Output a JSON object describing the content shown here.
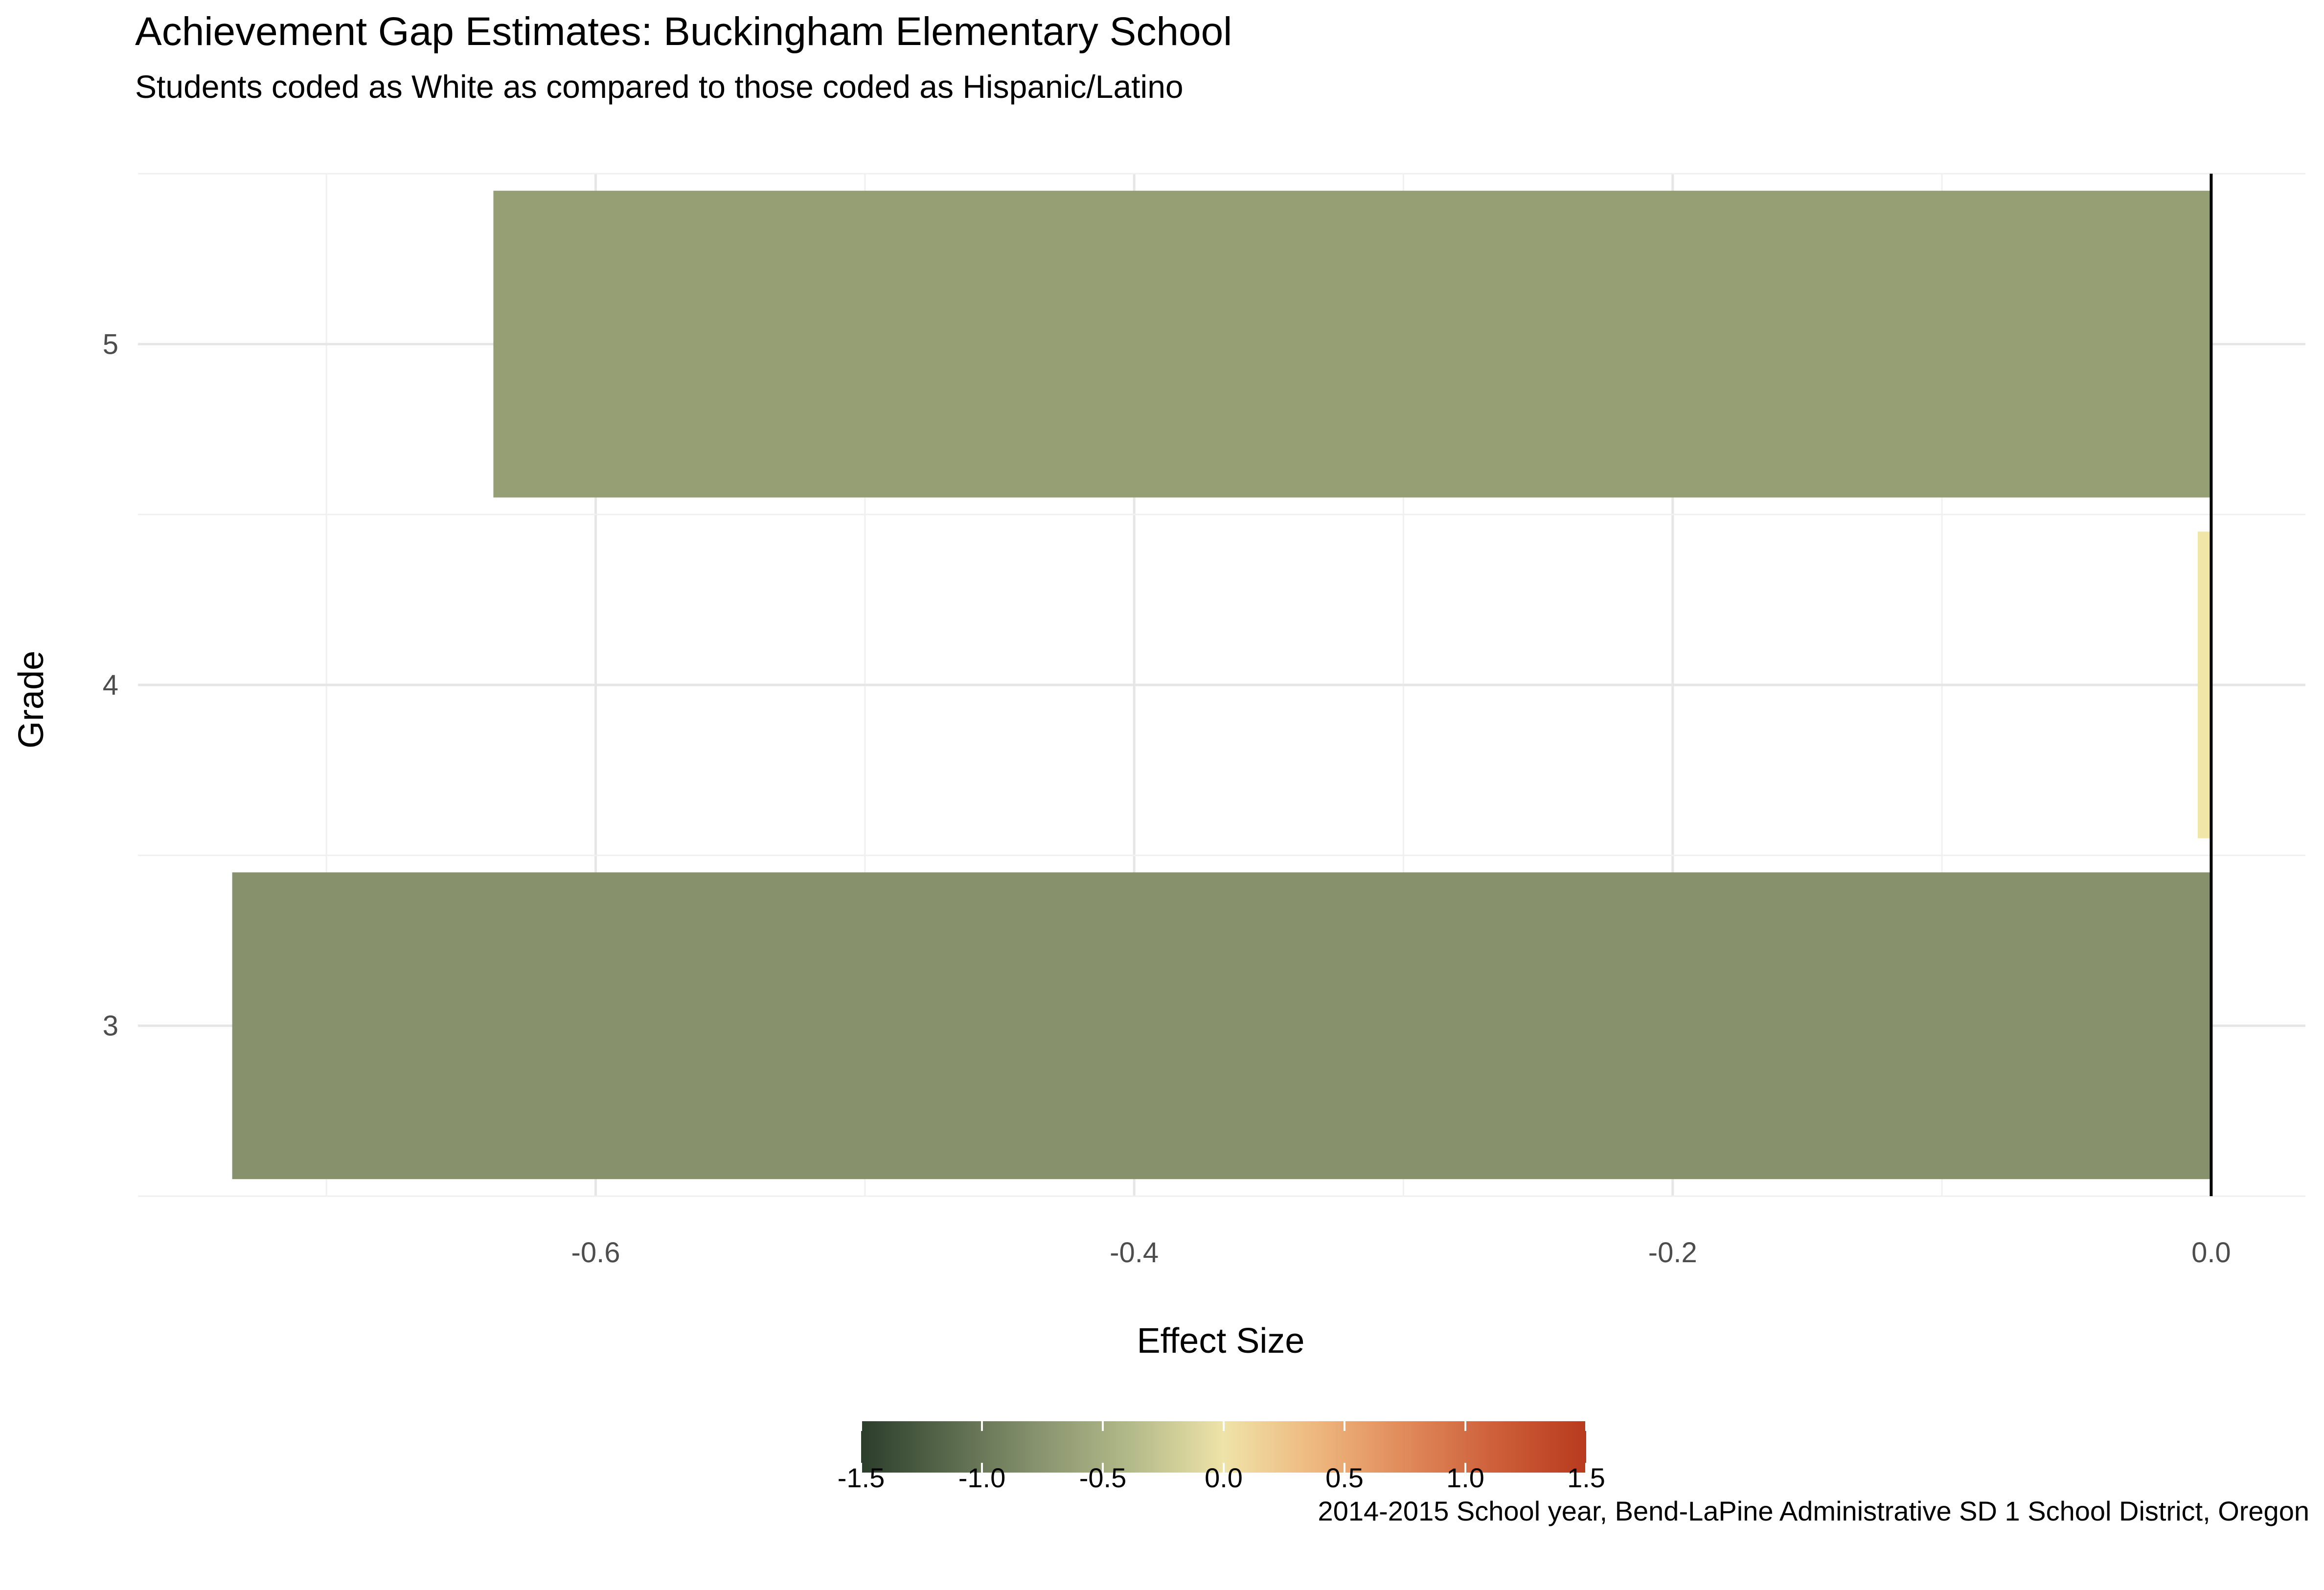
{
  "chart_data": {
    "type": "bar",
    "orientation": "horizontal",
    "title": "Achievement Gap Estimates: Buckingham Elementary School",
    "subtitle": "Students coded as White as compared to those coded as Hispanic/Latino",
    "caption": "2014-2015 School year, Bend-LaPine Administrative SD 1 School District, Oregon",
    "xlabel": "Effect Size",
    "ylabel": "Grade",
    "categories": [
      "3",
      "4",
      "5"
    ],
    "values": [
      -0.735,
      -0.005,
      -0.638
    ],
    "bar_colors": [
      "#87926c",
      "#f0e6a8",
      "#969e74"
    ],
    "xlim": [
      -0.77,
      0.035
    ],
    "x_ticks": [
      {
        "value": -0.6,
        "label": "-0.6"
      },
      {
        "value": -0.4,
        "label": "-0.4"
      },
      {
        "value": -0.2,
        "label": "-0.2"
      },
      {
        "value": 0.0,
        "label": "0.0"
      }
    ],
    "x_minor_ticks": [
      -0.7,
      -0.5,
      -0.3,
      -0.1
    ],
    "reference_line": 0,
    "grid": true,
    "legend": {
      "position": "bottom",
      "type": "colorbar",
      "range": [
        -1.5,
        1.5
      ],
      "ticks": [
        {
          "value": -1.5,
          "label": "-1.5"
        },
        {
          "value": -1.0,
          "label": "-1.0"
        },
        {
          "value": -0.5,
          "label": "-0.5"
        },
        {
          "value": 0.0,
          "label": "0.0"
        },
        {
          "value": 0.5,
          "label": "0.5"
        },
        {
          "value": 1.0,
          "label": "1.0"
        },
        {
          "value": 1.5,
          "label": "1.5"
        }
      ],
      "colors": [
        "#2b3e2b",
        "#5a6a4d",
        "#8a9570",
        "#b4bb8a",
        "#efe3a8",
        "#eeb87f",
        "#e08a5a",
        "#cd5f3a",
        "#b83a1e"
      ]
    }
  }
}
